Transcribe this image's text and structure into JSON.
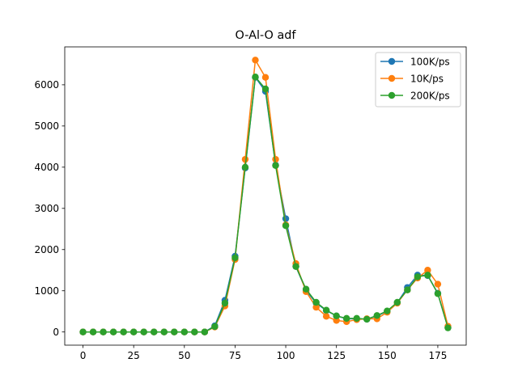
{
  "chart_data": {
    "type": "line",
    "title": "O-Al-O adf",
    "xlabel": "",
    "ylabel": "",
    "xlim": [
      -9,
      189
    ],
    "ylim": [
      -320,
      6920
    ],
    "xticks": [
      0,
      25,
      50,
      75,
      100,
      125,
      150,
      175
    ],
    "yticks": [
      0,
      1000,
      2000,
      3000,
      4000,
      5000,
      6000
    ],
    "grid": false,
    "legend_position": "top-right",
    "x": [
      0,
      5,
      10,
      15,
      20,
      25,
      30,
      35,
      40,
      45,
      50,
      55,
      60,
      65,
      70,
      75,
      80,
      85,
      90,
      95,
      100,
      105,
      110,
      115,
      120,
      125,
      130,
      135,
      140,
      145,
      150,
      155,
      160,
      165,
      170,
      175,
      180
    ],
    "series": [
      {
        "name": "100K/ps",
        "color": "#1f77b4",
        "values": [
          0,
          0,
          0,
          0,
          0,
          0,
          0,
          0,
          0,
          0,
          0,
          0,
          0,
          150,
          770,
          1840,
          3980,
          6180,
          5840,
          4050,
          2750,
          1590,
          1010,
          700,
          520,
          390,
          320,
          320,
          310,
          390,
          500,
          710,
          1080,
          1380,
          1370,
          940,
          110
        ]
      },
      {
        "name": "10K/ps",
        "color": "#ff7f0e",
        "values": [
          0,
          0,
          0,
          0,
          0,
          0,
          0,
          0,
          0,
          0,
          0,
          0,
          0,
          120,
          630,
          1760,
          4190,
          6600,
          6180,
          4190,
          2600,
          1660,
          980,
          600,
          380,
          280,
          250,
          300,
          320,
          320,
          480,
          700,
          1020,
          1310,
          1500,
          1160,
          140
        ]
      },
      {
        "name": "200K/ps",
        "color": "#2ca02c",
        "values": [
          0,
          0,
          0,
          0,
          0,
          0,
          0,
          0,
          0,
          0,
          0,
          0,
          0,
          130,
          700,
          1800,
          4000,
          6190,
          5900,
          4040,
          2580,
          1590,
          1040,
          720,
          530,
          390,
          330,
          330,
          310,
          400,
          510,
          720,
          1020,
          1340,
          1380,
          930,
          100
        ]
      }
    ]
  }
}
